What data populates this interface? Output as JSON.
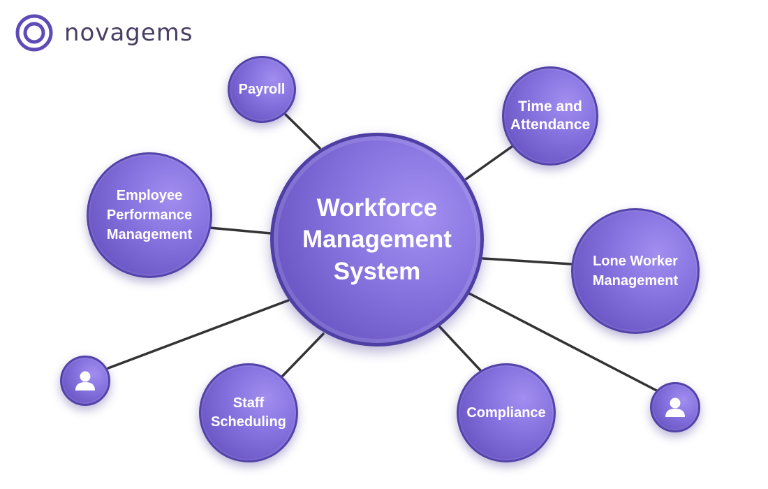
{
  "brand": {
    "name": "novagems",
    "logo_icon": "double-ring-logo-icon",
    "text_color": "#4a3f63",
    "accent_color": "#5f4bb6"
  },
  "hub": {
    "label": "Workforce\nManagement\nSystem",
    "color": "#7b67d6"
  },
  "nodes": [
    {
      "label": "Payroll"
    },
    {
      "label": "Time and\nAttendance"
    },
    {
      "label": "Employee\nPerformance\nManagement"
    },
    {
      "label": "Lone Worker\nManagement"
    },
    {
      "label": "Staff\nScheduling"
    },
    {
      "label": "Compliance"
    }
  ],
  "icons": {
    "left_person": "person-icon",
    "right_person": "person-icon"
  },
  "connector_color": "#333333"
}
